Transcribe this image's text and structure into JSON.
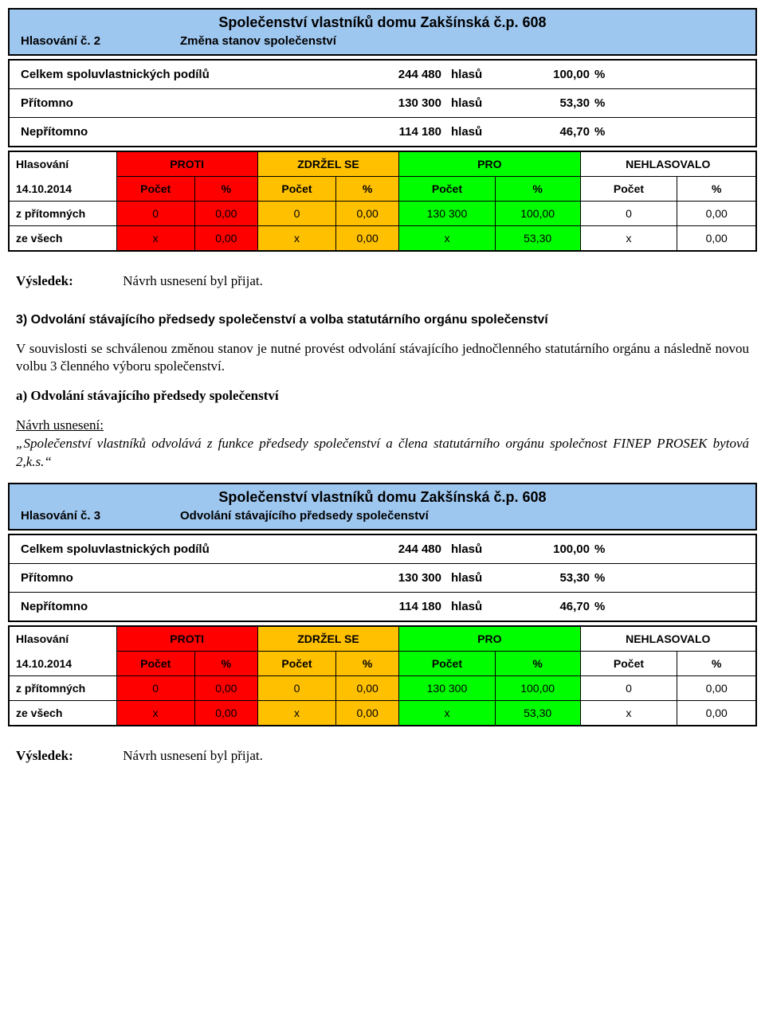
{
  "colors": {
    "header_bg": "#9ec7f0",
    "proti_bg": "#fe0000",
    "zdrzel_bg": "#ffc000",
    "pro_bg": "#00fe00",
    "nehlas_bg": "#ffffff"
  },
  "section1": {
    "title": "Společenství vlastníků domu Zakšínská č.p. 608",
    "vote_no": "Hlasování č. 2",
    "subject": "Změna stanov společenství",
    "summary": [
      {
        "label": "Celkem spoluvlastnických podílů",
        "value": "244 480",
        "unit": "hlasů",
        "pct": "100,00",
        "pctu": "%"
      },
      {
        "label": "Přítomno",
        "value": "130 300",
        "unit": "hlasů",
        "pct": "53,30",
        "pctu": "%"
      },
      {
        "label": "Nepřítomno",
        "value": "114 180",
        "unit": "hlasů",
        "pct": "46,70",
        "pctu": "%"
      }
    ],
    "vote": {
      "head_label": "Hlasování",
      "date": "14.10.2014",
      "cats": [
        "PROTI",
        "ZDRŽEL SE",
        "PRO",
        "NEHLASOVALO"
      ],
      "sub": [
        "Počet",
        "%"
      ],
      "rows": [
        {
          "label": "z přítomných",
          "cells": [
            "0",
            "0,00",
            "0",
            "0,00",
            "130 300",
            "100,00",
            "0",
            "0,00"
          ]
        },
        {
          "label": "ze všech",
          "cells": [
            "x",
            "0,00",
            "x",
            "0,00",
            "x",
            "53,30",
            "x",
            "0,00"
          ]
        }
      ]
    },
    "result_label": "Výsledek:",
    "result_value": "Návrh usnesení byl přijat."
  },
  "text3": {
    "heading": "3) Odvolání stávajícího předsedy společenství a volba statutárního orgánu společenství",
    "p1": "V souvislosti se schválenou změnou stanov je nutné provést odvolání stávajícího jednočlenného statutárního orgánu a následně novou volbu 3 členného výboru společenství.",
    "sub_a": "a) Odvolání stávajícího předsedy společenství",
    "navrh_label": "Návrh usnesení:",
    "navrh_text": "„Společenství vlastníků odvolává z funkce předsedy společenství a člena statutárního orgánu společnost FINEP PROSEK bytová 2,k.s.“"
  },
  "section2": {
    "title": "Společenství vlastníků domu Zakšínská č.p. 608",
    "vote_no": "Hlasování č. 3",
    "subject": "Odvolání stávajícího předsedy společenství",
    "summary": [
      {
        "label": "Celkem spoluvlastnických podílů",
        "value": "244 480",
        "unit": "hlasů",
        "pct": "100,00",
        "pctu": "%"
      },
      {
        "label": "Přítomno",
        "value": "130 300",
        "unit": "hlasů",
        "pct": "53,30",
        "pctu": "%"
      },
      {
        "label": "Nepřítomno",
        "value": "114 180",
        "unit": "hlasů",
        "pct": "46,70",
        "pctu": "%"
      }
    ],
    "vote": {
      "head_label": "Hlasování",
      "date": "14.10.2014",
      "cats": [
        "PROTI",
        "ZDRŽEL SE",
        "PRO",
        "NEHLASOVALO"
      ],
      "sub": [
        "Počet",
        "%"
      ],
      "rows": [
        {
          "label": "z přítomných",
          "cells": [
            "0",
            "0,00",
            "0",
            "0,00",
            "130 300",
            "100,00",
            "0",
            "0,00"
          ]
        },
        {
          "label": "ze všech",
          "cells": [
            "x",
            "0,00",
            "x",
            "0,00",
            "x",
            "53,30",
            "x",
            "0,00"
          ]
        }
      ]
    },
    "result_label": "Výsledek:",
    "result_value": "Návrh usnesení byl přijat."
  }
}
